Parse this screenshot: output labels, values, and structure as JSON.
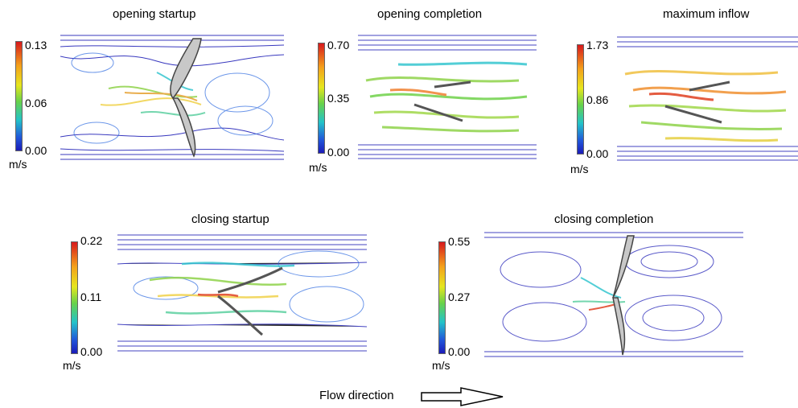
{
  "panels": [
    {
      "title": "opening startup",
      "max": "0.13",
      "mid": "0.06",
      "min": "0.00",
      "unit": "m/s"
    },
    {
      "title": "opening completion",
      "max": "0.70",
      "mid": "0.35",
      "min": "0.00",
      "unit": "m/s"
    },
    {
      "title": "maximum inflow",
      "max": "1.73",
      "mid": "0.86",
      "min": "0.00",
      "unit": "m/s"
    },
    {
      "title": "closing startup",
      "max": "0.22",
      "mid": "0.11",
      "min": "0.00",
      "unit": "m/s"
    },
    {
      "title": "closing completion",
      "max": "0.55",
      "mid": "0.27",
      "min": "0.00",
      "unit": "m/s"
    }
  ],
  "flow": {
    "label": "Flow direction"
  }
}
